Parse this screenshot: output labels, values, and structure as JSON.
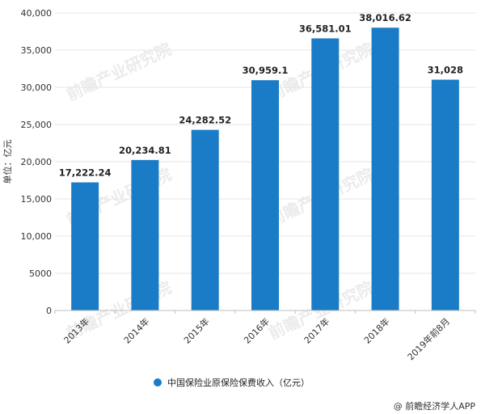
{
  "chart_data": {
    "type": "bar",
    "categories": [
      "2013年",
      "2014年",
      "2015年",
      "2016年",
      "2017年",
      "2018年",
      "2019年前8月"
    ],
    "series": [
      {
        "name": "中国保险业原保险保费收入（亿元）",
        "values": [
          17222.24,
          20234.81,
          24282.52,
          30959.1,
          36581.01,
          38016.62,
          31028
        ],
        "labels": [
          "17,222.24",
          "20,234.81",
          "24,282.52",
          "30,959.1",
          "36,581.01",
          "38,016.62",
          "31,028"
        ]
      }
    ],
    "ylabel": "单位：亿元",
    "ylim": [
      0,
      40000
    ],
    "yticks": [
      0,
      5000,
      10000,
      15000,
      20000,
      25000,
      30000,
      35000,
      40000
    ],
    "ytick_labels": [
      "0",
      "5000",
      "10,000",
      "15,000",
      "20,000",
      "25,000",
      "30,000",
      "35,000",
      "40,000"
    ],
    "grid": true,
    "legend_position": "bottom-center"
  },
  "colors": {
    "bar": "#1a7cc6",
    "grid": "#e6e6e6",
    "axis": "#bfbfbf"
  },
  "watermark_text": "前瞻产业研究院",
  "credit": "@ 前瞻经济学人APP"
}
